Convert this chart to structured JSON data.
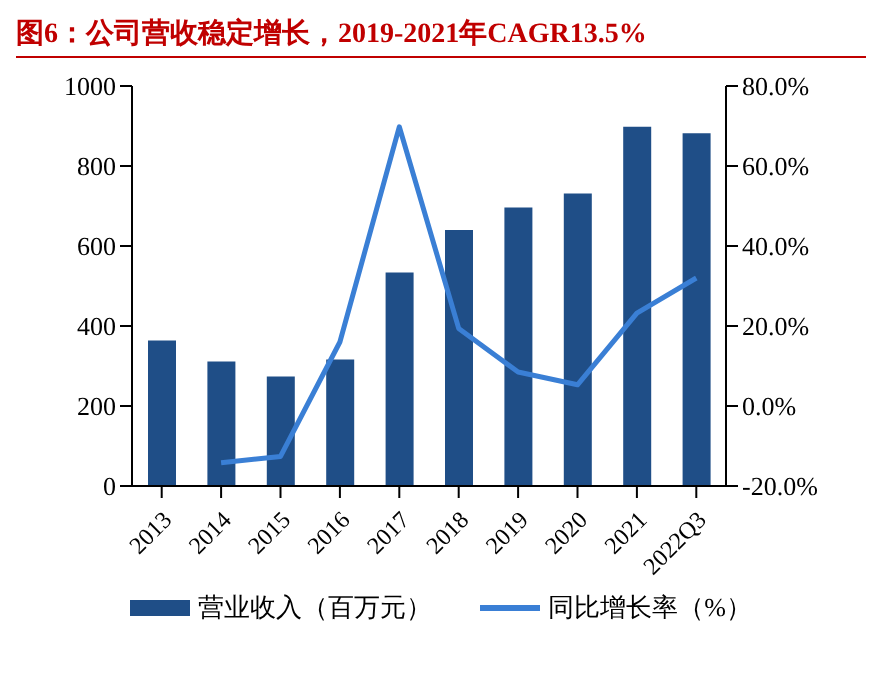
{
  "chart_data": {
    "type": "bar",
    "title": "图6：公司营收稳定增长，2019-2021年CAGR13.5%",
    "categories": [
      "2013",
      "2014",
      "2015",
      "2016",
      "2017",
      "2018",
      "2019",
      "2020",
      "2021",
      "2022Q3"
    ],
    "series": [
      {
        "name": "营业收入（百万元）",
        "color": "#1f4e87",
        "values": [
          364,
          311,
          274,
          316,
          534,
          640,
          696,
          731,
          898,
          882
        ]
      },
      {
        "name": "同比增长率（%）",
        "type": "line",
        "axis": "y2",
        "color": "#3a7fd5",
        "values": [
          null,
          -14.2,
          -12.6,
          16.0,
          69.8,
          19.4,
          8.5,
          5.3,
          23.2,
          32.0
        ]
      }
    ],
    "ylim": [
      0,
      1000
    ],
    "yticks": [
      0,
      200,
      400,
      600,
      800,
      1000
    ],
    "y2lim": [
      -20,
      80
    ],
    "y2ticks": [
      {
        "value": -20,
        "label": "-20.0%"
      },
      {
        "value": 0,
        "label": "0.0%"
      },
      {
        "value": 20,
        "label": "20.0%"
      },
      {
        "value": 40,
        "label": "40.0%"
      },
      {
        "value": 60,
        "label": "60.0%"
      },
      {
        "value": 80,
        "label": "80.0%"
      }
    ],
    "grid": false,
    "legend": "bottom",
    "marker": "none"
  }
}
